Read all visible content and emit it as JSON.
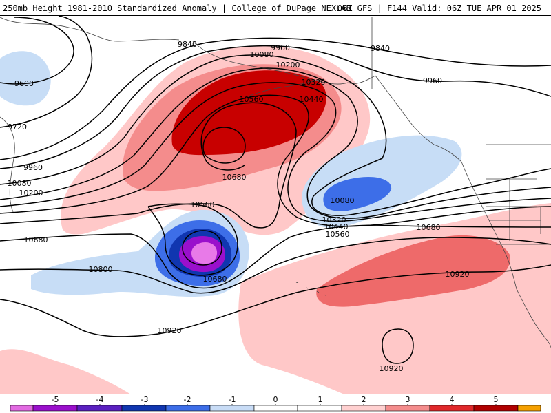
{
  "header": {
    "title_left": "250mb Height 1981-2010 Standardized Anomaly | College of DuPage NEXLAB",
    "title_right": "06Z GFS | F144 Valid: 06Z TUE APR 01 2025"
  },
  "contour_labels": [
    {
      "id": "9600",
      "text": "9600"
    },
    {
      "id": "9720",
      "text": "9720"
    },
    {
      "id": "9840a",
      "text": "9840"
    },
    {
      "id": "9840b",
      "text": "9840"
    },
    {
      "id": "9960a",
      "text": "9960"
    },
    {
      "id": "9960b",
      "text": "9960"
    },
    {
      "id": "9960c",
      "text": "9960"
    },
    {
      "id": "10080a",
      "text": "10080"
    },
    {
      "id": "10080b",
      "text": "10080"
    },
    {
      "id": "10080c",
      "text": "10080"
    },
    {
      "id": "10200a",
      "text": "10200"
    },
    {
      "id": "10200b",
      "text": "10200"
    },
    {
      "id": "10320",
      "text": "10320"
    },
    {
      "id": "10440a",
      "text": "10440"
    },
    {
      "id": "10560a",
      "text": "10560"
    },
    {
      "id": "10680a",
      "text": "10680"
    },
    {
      "id": "10320b",
      "text": "10320"
    },
    {
      "id": "10440b",
      "text": "10440"
    },
    {
      "id": "10560b",
      "text": "10560"
    },
    {
      "id": "10680b",
      "text": "10680"
    },
    {
      "id": "10560c",
      "text": "10560"
    },
    {
      "id": "10680c",
      "text": "10680"
    },
    {
      "id": "10680d",
      "text": "10680"
    },
    {
      "id": "10800",
      "text": "10800"
    },
    {
      "id": "10920a",
      "text": "10920"
    },
    {
      "id": "10920b",
      "text": "10920"
    },
    {
      "id": "10920c",
      "text": "10920"
    }
  ],
  "colorbar": {
    "ticks": [
      "-5",
      "-4",
      "-3",
      "-2",
      "-1",
      "0",
      "1",
      "2",
      "3",
      "4",
      "5"
    ],
    "colors": [
      "#e26ae2",
      "#9a10cc",
      "#1036b0",
      "#3d6ee8",
      "#c8dcf6",
      "#ffffff",
      "#ffd0d0",
      "#f48c8c",
      "#e0282a",
      "#b00000",
      "#f5a000"
    ]
  },
  "colors": {
    "red_dark": "#c80000",
    "red": "#ee6a6a",
    "red_light": "#ffc8c8",
    "blue_light": "#c7ddf6",
    "blue": "#3d6ee8",
    "blue_dark": "#1036b0",
    "purple": "#9a10cc",
    "magenta": "#e87ae8"
  }
}
